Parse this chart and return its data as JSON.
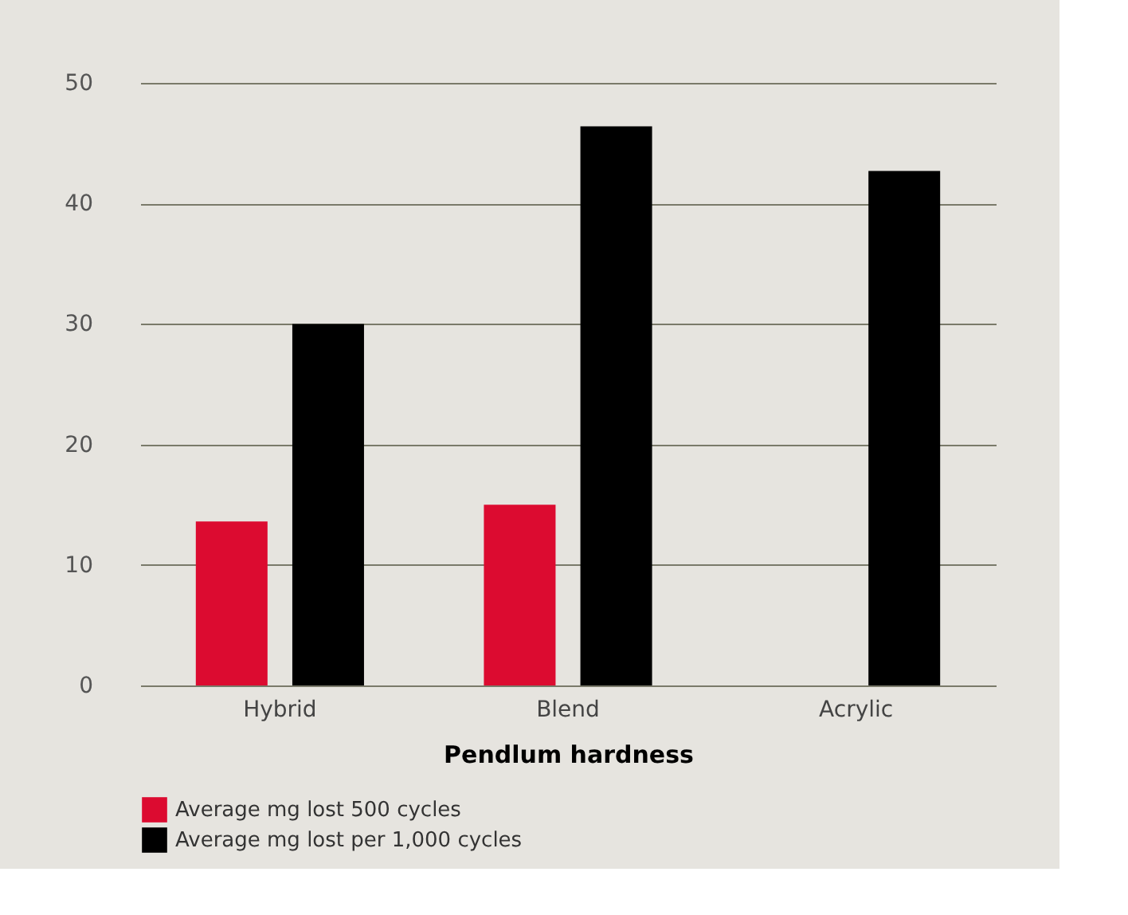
{
  "chart_data": {
    "type": "bar",
    "xlabel": "Pendlum hardness",
    "categories": [
      "Hybrid",
      "Blend",
      "Acrylic"
    ],
    "series": [
      {
        "name": "Average mg lost 500 cycles",
        "color": "#dc0b30",
        "values": [
          13.6,
          15.0,
          null
        ]
      },
      {
        "name": "Average mg lost per 1,000 cycles",
        "color": "#000000",
        "values": [
          30,
          46.4,
          42.7
        ]
      }
    ],
    "ylim": [
      0,
      50
    ],
    "yticks": [
      0,
      10,
      20,
      30,
      40,
      50
    ],
    "grid": "y",
    "legend": "bottom"
  }
}
